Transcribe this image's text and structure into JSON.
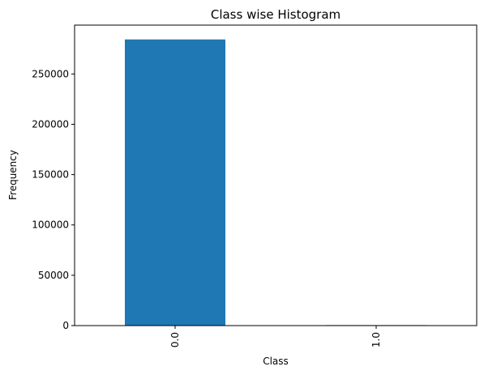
{
  "chart_data": {
    "type": "bar",
    "title": "Class wise Histogram",
    "xlabel": "Class",
    "ylabel": "Frequency",
    "categories": [
      "0.0",
      "1.0"
    ],
    "values": [
      284315,
      492
    ],
    "ylim": [
      0,
      298552
    ],
    "yticks": [
      0,
      50000,
      100000,
      150000,
      200000,
      250000
    ],
    "bar_color": "#1f77b4",
    "grid": false,
    "legend": "none"
  }
}
